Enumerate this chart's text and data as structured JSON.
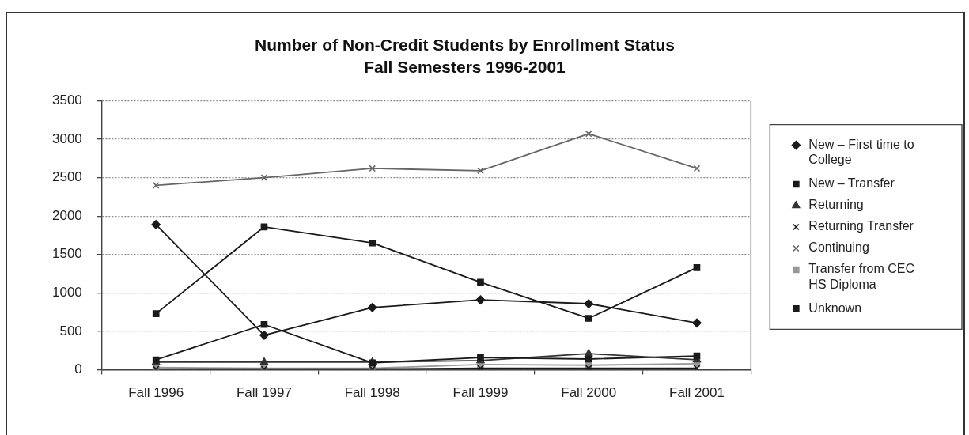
{
  "chart_data": {
    "type": "line",
    "title": "Number of Non-Credit Students by Enrollment Status",
    "subtitle": "Fall Semesters 1996-2001",
    "categories": [
      "Fall 1996",
      "Fall 1997",
      "Fall 1998",
      "Fall 1999",
      "Fall 2000",
      "Fall 2001"
    ],
    "series": [
      {
        "name": "New – First time to College",
        "color": "#1a1a1a",
        "marker": "diamond",
        "values": [
          1890,
          450,
          810,
          910,
          860,
          610
        ]
      },
      {
        "name": "New – Transfer",
        "color": "#1a1a1a",
        "marker": "square",
        "values": [
          130,
          590,
          90,
          160,
          140,
          180
        ]
      },
      {
        "name": "Returning",
        "color": "#333333",
        "marker": "triangle",
        "values": [
          100,
          100,
          100,
          120,
          210,
          130
        ]
      },
      {
        "name": "Returning Transfer",
        "color": "#1a1a1a",
        "marker": "cross",
        "values": [
          10,
          10,
          10,
          20,
          20,
          20
        ]
      },
      {
        "name": "Continuing",
        "color": "#666666",
        "marker": "cross",
        "values": [
          2400,
          2500,
          2620,
          2590,
          3070,
          2620
        ]
      },
      {
        "name": "Transfer from CEC HS Diploma",
        "color": "#999999",
        "marker": "square",
        "values": [
          30,
          20,
          20,
          70,
          60,
          80
        ]
      },
      {
        "name": "Unknown",
        "color": "#1a1a1a",
        "marker": "square",
        "values": [
          730,
          1860,
          1650,
          1140,
          670,
          1330
        ]
      }
    ],
    "ylim": [
      0,
      3500
    ],
    "yticks": [
      0,
      500,
      1000,
      1500,
      2000,
      2500,
      3000,
      3500
    ],
    "grid": "y",
    "legend": "right"
  }
}
